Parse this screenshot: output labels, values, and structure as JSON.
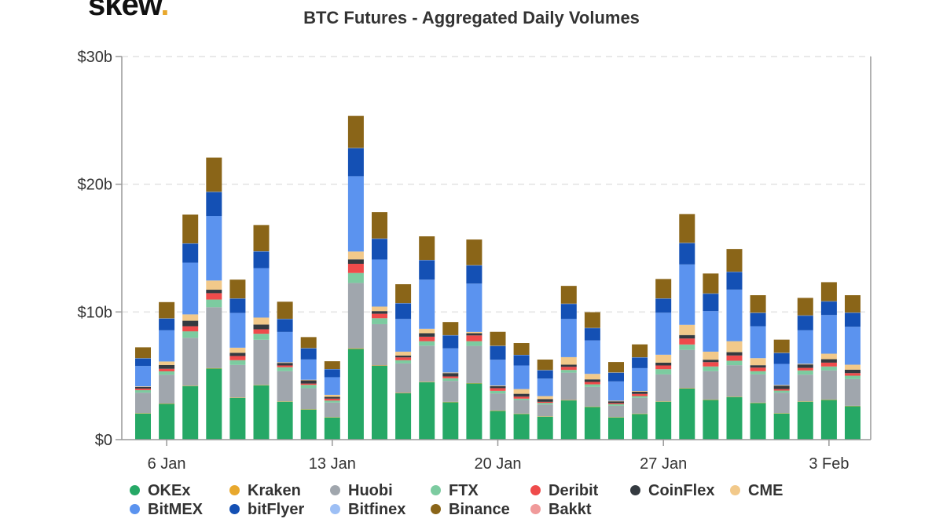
{
  "logo": {
    "text": "skew",
    "dot": "."
  },
  "chart_data": {
    "type": "bar",
    "stacked": true,
    "title": "BTC Futures - Aggregated Daily Volumes",
    "xlabel": "",
    "ylabel": "",
    "ylim": [
      0,
      30
    ],
    "y_unit": "billion USD",
    "y_ticks": [
      {
        "value": 0,
        "label": "$0"
      },
      {
        "value": 10,
        "label": "$10b"
      },
      {
        "value": 20,
        "label": "$20b"
      },
      {
        "value": 30,
        "label": "$30b"
      }
    ],
    "x_ticks": [
      {
        "date": "6 Jan",
        "label": "6 Jan"
      },
      {
        "date": "13 Jan",
        "label": "13 Jan"
      },
      {
        "date": "20 Jan",
        "label": "20 Jan"
      },
      {
        "date": "27 Jan",
        "label": "27 Jan"
      },
      {
        "date": "3 Feb",
        "label": "3 Feb"
      }
    ],
    "grid": "horizontal dashed",
    "legend_position": "bottom",
    "categories": [
      "5 Jan",
      "6 Jan",
      "7 Jan",
      "8 Jan",
      "9 Jan",
      "10 Jan",
      "11 Jan",
      "12 Jan",
      "13 Jan",
      "14 Jan",
      "15 Jan",
      "16 Jan",
      "17 Jan",
      "18 Jan",
      "19 Jan",
      "20 Jan",
      "21 Jan",
      "22 Jan",
      "23 Jan",
      "24 Jan",
      "25 Jan",
      "26 Jan",
      "27 Jan",
      "28 Jan",
      "29 Jan",
      "30 Jan",
      "31 Jan",
      "1 Feb",
      "2 Feb",
      "3 Feb",
      "4 Feb"
    ],
    "series": [
      {
        "name": "OKEx",
        "color": "#26a866",
        "values": [
          2.05,
          2.8,
          4.2,
          5.57,
          3.27,
          4.26,
          2.97,
          2.36,
          1.74,
          7.1,
          5.78,
          3.63,
          4.5,
          2.93,
          4.4,
          2.25,
          2.01,
          1.8,
          3.07,
          2.56,
          1.74,
          2.01,
          2.97,
          4.0,
          3.11,
          3.34,
          2.87,
          2.05,
          2.97,
          3.11,
          2.62
        ]
      },
      {
        "name": "Kraken",
        "color": "#e8a82d",
        "values": [
          0.03,
          0.03,
          0.03,
          0.03,
          0.03,
          0.03,
          0.03,
          0.03,
          0.03,
          0.05,
          0.03,
          0.03,
          0.03,
          0.03,
          0.03,
          0.03,
          0.03,
          0.03,
          0.03,
          0.03,
          0.03,
          0.03,
          0.03,
          0.03,
          0.03,
          0.03,
          0.03,
          0.03,
          0.03,
          0.03,
          0.03
        ]
      },
      {
        "name": "Huobi",
        "color": "#a0a6ad",
        "values": [
          1.6,
          2.25,
          3.75,
          4.77,
          2.55,
          3.53,
          2.36,
          1.64,
          1.13,
          5.12,
          3.23,
          2.31,
          2.83,
          1.64,
          2.91,
          1.34,
          1.06,
          0.92,
          2.15,
          1.54,
          0.88,
          1.23,
          2.11,
          3.0,
          2.22,
          2.46,
          2.21,
          1.6,
          2.09,
          2.28,
          2.09
        ]
      },
      {
        "name": "FTX",
        "color": "#7ccba0",
        "values": [
          0.2,
          0.27,
          0.5,
          0.6,
          0.37,
          0.47,
          0.31,
          0.26,
          0.16,
          0.78,
          0.47,
          0.25,
          0.35,
          0.21,
          0.37,
          0.2,
          0.11,
          0.13,
          0.21,
          0.2,
          0.13,
          0.14,
          0.41,
          0.42,
          0.37,
          0.35,
          0.25,
          0.16,
          0.33,
          0.31,
          0.27
        ]
      },
      {
        "name": "Deribit",
        "color": "#ef4b4b",
        "values": [
          0.12,
          0.2,
          0.4,
          0.5,
          0.33,
          0.35,
          0.14,
          0.1,
          0.15,
          0.72,
          0.35,
          0.22,
          0.35,
          0.14,
          0.45,
          0.21,
          0.16,
          0.08,
          0.24,
          0.19,
          0.08,
          0.17,
          0.29,
          0.47,
          0.34,
          0.41,
          0.28,
          0.12,
          0.2,
          0.3,
          0.2
        ]
      },
      {
        "name": "CoinFlex",
        "color": "#343a40",
        "values": [
          0.12,
          0.3,
          0.43,
          0.27,
          0.25,
          0.37,
          0.2,
          0.25,
          0.14,
          0.35,
          0.21,
          0.15,
          0.27,
          0.26,
          0.17,
          0.16,
          0.22,
          0.22,
          0.17,
          0.2,
          0.14,
          0.18,
          0.22,
          0.27,
          0.19,
          0.26,
          0.19,
          0.27,
          0.27,
          0.27,
          0.27
        ]
      },
      {
        "name": "CME",
        "color": "#f2c98a",
        "values": [
          0.05,
          0.27,
          0.5,
          0.72,
          0.4,
          0.55,
          0.05,
          0.05,
          0.16,
          0.61,
          0.35,
          0.3,
          0.35,
          0.05,
          0.1,
          0.05,
          0.37,
          0.23,
          0.59,
          0.43,
          0.05,
          0.05,
          0.62,
          0.8,
          0.63,
          0.86,
          0.55,
          0.05,
          0.05,
          0.43,
          0.39
        ]
      },
      {
        "name": "BitMEX",
        "color": "#5b93ef",
        "values": [
          1.6,
          2.45,
          4.05,
          5.06,
          2.72,
          3.87,
          2.37,
          1.59,
          1.38,
          5.9,
          3.69,
          2.56,
          3.85,
          1.89,
          3.79,
          2.02,
          1.85,
          1.37,
          2.99,
          2.62,
          1.51,
          1.79,
          3.29,
          4.73,
          3.18,
          4.04,
          2.5,
          1.65,
          2.63,
          3.03,
          2.97
        ]
      },
      {
        "name": "bitFlyer",
        "color": "#1450b4",
        "values": [
          0.6,
          0.92,
          1.5,
          1.88,
          1.13,
          1.31,
          1.02,
          0.88,
          0.63,
          2.2,
          1.63,
          1.23,
          1.53,
          1.02,
          1.43,
          1.08,
          0.82,
          0.66,
          1.19,
          0.97,
          0.69,
          0.84,
          1.11,
          1.68,
          1.37,
          1.39,
          1.05,
          0.86,
          1.15,
          1.07,
          1.1
        ]
      },
      {
        "name": "Bitfinex",
        "color": "#9dbff5",
        "values": [
          0.01,
          0.01,
          0.01,
          0.01,
          0.01,
          0.01,
          0.01,
          0.01,
          0.01,
          0.01,
          0.01,
          0.01,
          0.01,
          0.01,
          0.01,
          0.01,
          0.01,
          0.01,
          0.01,
          0.01,
          0.01,
          0.01,
          0.01,
          0.01,
          0.01,
          0.01,
          0.01,
          0.01,
          0.01,
          0.01,
          0.01
        ]
      },
      {
        "name": "Binance",
        "color": "#8a6518",
        "values": [
          0.85,
          1.27,
          2.25,
          2.68,
          1.47,
          2.05,
          1.34,
          0.86,
          0.61,
          2.51,
          2.07,
          1.48,
          1.85,
          1.03,
          2.01,
          1.09,
          0.92,
          0.82,
          1.39,
          1.23,
          0.82,
          1.01,
          1.52,
          2.25,
          1.56,
          1.78,
          1.37,
          1.03,
          1.37,
          1.49,
          1.36
        ]
      },
      {
        "name": "Bakkt",
        "color": "#f09a9a",
        "values": [
          0,
          0,
          0,
          0,
          0,
          0,
          0,
          0,
          0,
          0,
          0,
          0,
          0,
          0,
          0,
          0,
          0,
          0,
          0,
          0,
          0,
          0,
          0,
          0,
          0,
          0,
          0,
          0,
          0,
          0,
          0
        ]
      }
    ]
  }
}
